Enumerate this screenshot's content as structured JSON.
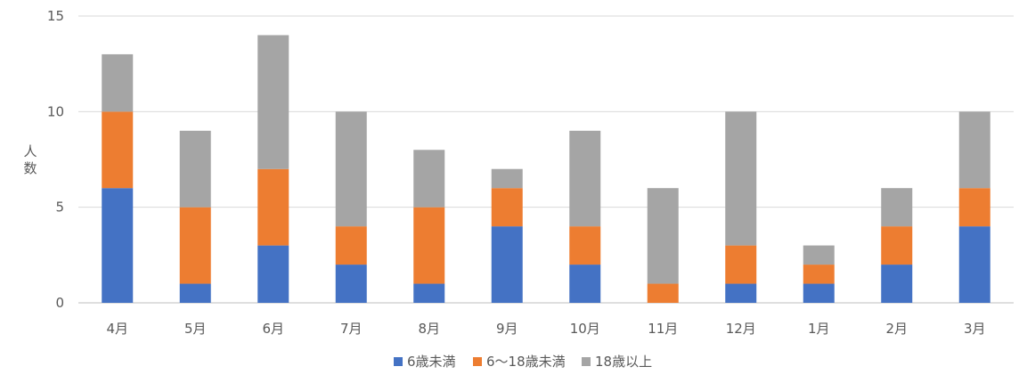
{
  "chart_data": {
    "type": "bar",
    "stacked": true,
    "categories": [
      "4月",
      "5月",
      "6月",
      "7月",
      "8月",
      "9月",
      "10月",
      "11月",
      "12月",
      "1月",
      "2月",
      "3月"
    ],
    "series": [
      {
        "name": "6歳未満",
        "color": "#4472C4",
        "values": [
          6,
          1,
          3,
          2,
          1,
          4,
          2,
          0,
          1,
          1,
          2,
          4
        ]
      },
      {
        "name": "6〜18歳未満",
        "color": "#ED7D31",
        "values": [
          4,
          4,
          4,
          2,
          4,
          2,
          2,
          1,
          2,
          1,
          2,
          2
        ]
      },
      {
        "name": "18歳以上",
        "color": "#A5A5A5",
        "values": [
          3,
          4,
          7,
          6,
          3,
          1,
          5,
          5,
          7,
          1,
          2,
          4
        ]
      }
    ],
    "title": "",
    "xlabel": "",
    "ylabel": "人数",
    "ylim": [
      0,
      15
    ],
    "yticks": [
      0,
      5,
      10,
      15
    ],
    "grid": true,
    "legend": "bottom"
  }
}
